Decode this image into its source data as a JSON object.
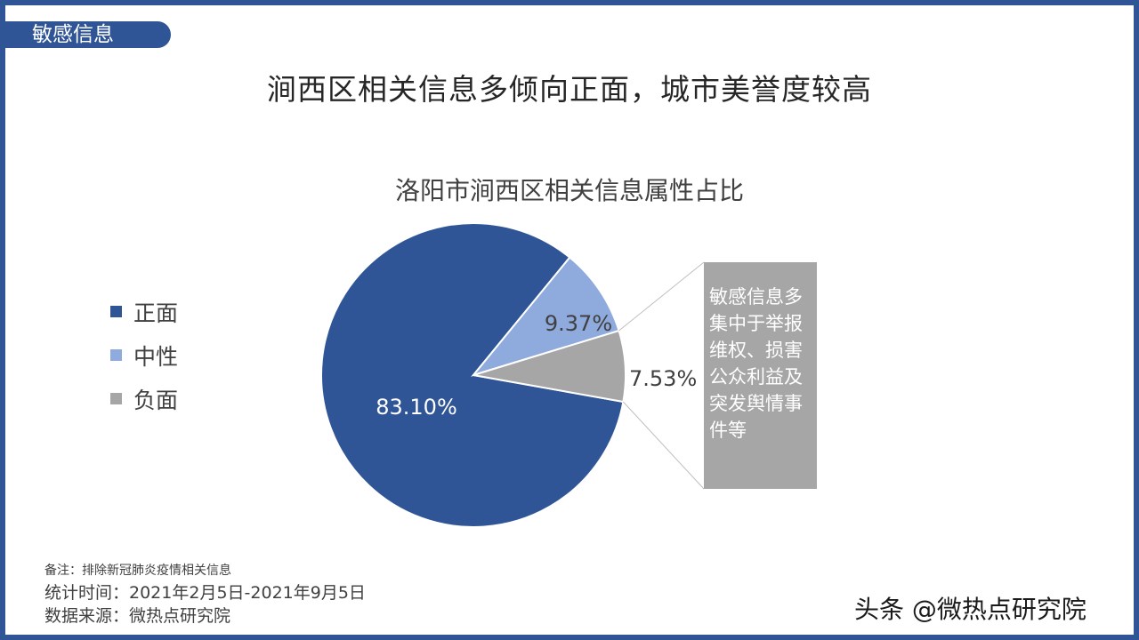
{
  "section_tag": "敏感信息",
  "headline": "涧西区相关信息多倾向正面，城市美誉度较高",
  "callout_text": "敏感信息多集中于举报维权、损害公众利益及突发舆情事件等",
  "footnote": "备注：排除新冠肺炎疫情相关信息",
  "period": "统计时间：2021年2月5日-2021年9月5日",
  "source": "数据来源：微热点研究院",
  "watermark": "头条 @微热点研究院",
  "chart_data": {
    "type": "pie",
    "title": "洛阳市涧西区相关信息属性占比",
    "slices": [
      {
        "name": "正面",
        "value": 83.1,
        "label": "83.10%",
        "color": "#2f5597"
      },
      {
        "name": "中性",
        "value": 9.37,
        "label": "9.37%",
        "color": "#8faadc"
      },
      {
        "name": "负面",
        "value": 7.53,
        "label": "7.53%",
        "color": "#a6a6a6"
      }
    ],
    "legend_position": "left"
  }
}
